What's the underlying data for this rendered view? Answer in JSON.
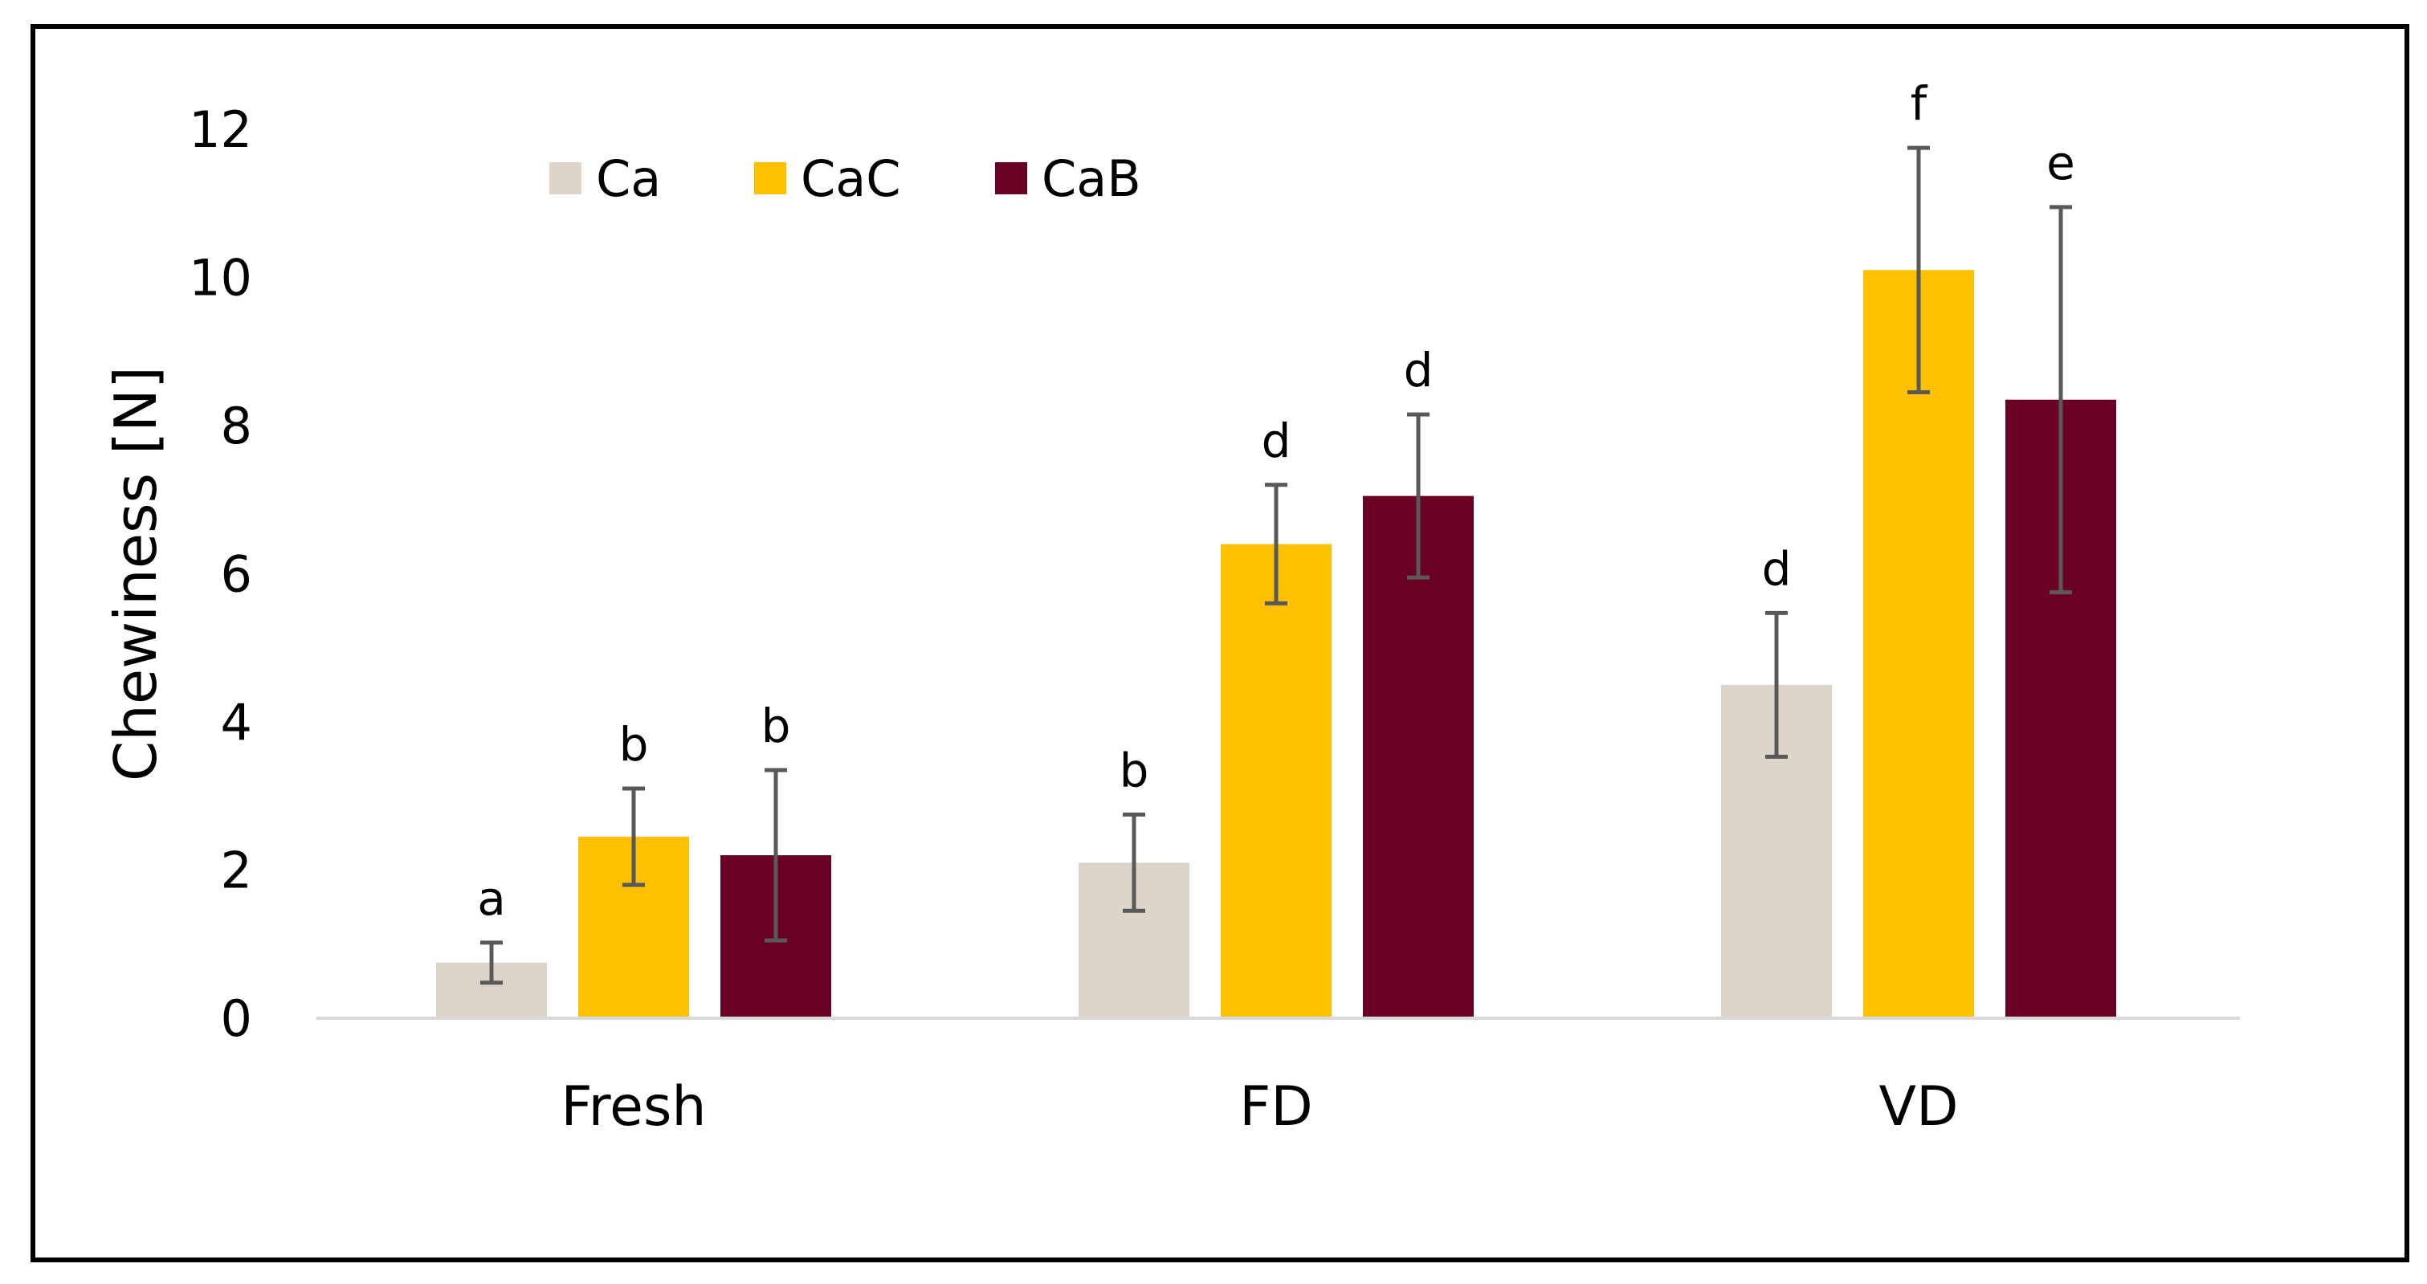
{
  "chart_data": {
    "type": "bar",
    "title": "",
    "xlabel": "",
    "ylabel": "Chewiness  [N]",
    "ylim": [
      0,
      12
    ],
    "yticks": [
      "0",
      "2",
      "4",
      "6",
      "8",
      "10",
      "12"
    ],
    "grid": false,
    "legend_position": "top-left",
    "categories": [
      "Fresh",
      "FD",
      "VD"
    ],
    "series": [
      {
        "name": "Ca",
        "color": "#DDD5C9",
        "values": [
          0.75,
          2.1,
          4.5
        ],
        "errors": [
          0.27,
          0.65,
          0.97
        ],
        "labels": [
          "a",
          "b",
          "d"
        ]
      },
      {
        "name": "CaC",
        "color": "#FFC000",
        "values": [
          2.45,
          6.4,
          10.1
        ],
        "errors": [
          0.65,
          0.8,
          1.65
        ],
        "labels": [
          "b",
          "d",
          "f"
        ]
      },
      {
        "name": "CaB",
        "color": "#6B0026",
        "values": [
          2.2,
          7.05,
          8.35
        ],
        "errors": [
          1.15,
          1.1,
          2.6
        ],
        "labels": [
          "b",
          "d",
          "e"
        ]
      }
    ],
    "error_bar_color": "#595959",
    "axis_color": "#D9D9D9"
  }
}
